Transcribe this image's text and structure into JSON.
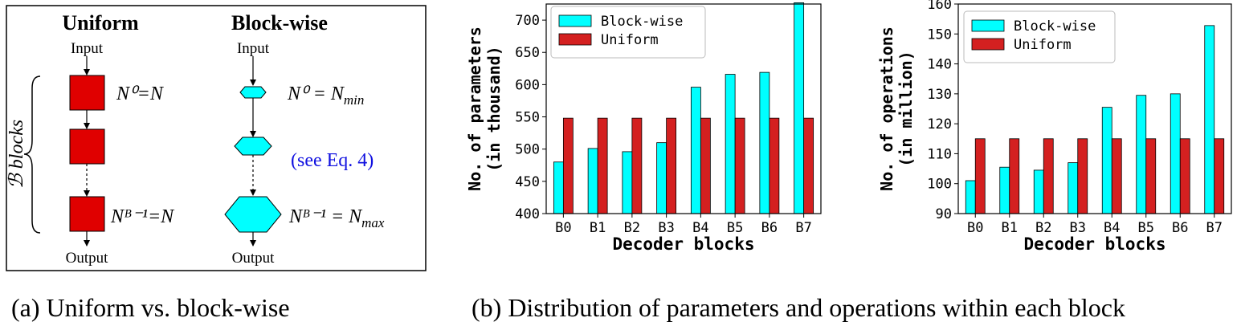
{
  "colors": {
    "blockwise": "#00FFFF",
    "uniform": "#D42020",
    "diagram_red": "#E00000",
    "eq_ref": "#1010E0"
  },
  "diagram": {
    "uniform_title": "Uniform",
    "blockwise_title": "Block-wise",
    "input_label": "Input",
    "output_label": "Output",
    "blocks_label": "ℬ blocks",
    "uniform_first_eq": "N⁰=N",
    "uniform_last_eq": "Nᴮ⁻¹=N",
    "block_first_eq": "N⁰ = N",
    "block_first_sub": "min",
    "block_last_eq": "Nᴮ⁻¹ = N",
    "block_last_sub": "max",
    "eq_reference": "(see Eq. 4)"
  },
  "captions": {
    "a": "(a) Uniform vs. block-wise",
    "b": "(b) Distribution of parameters and operations within each block"
  },
  "chart_data": [
    {
      "type": "bar",
      "xlabel": "Decoder blocks",
      "ylabel_line1": "No. of parameters",
      "ylabel_line2": "(in thousand)",
      "ylim": [
        400,
        725
      ],
      "yticks": [
        400,
        450,
        500,
        550,
        600,
        650,
        700
      ],
      "categories": [
        "B0",
        "B1",
        "B2",
        "B3",
        "B4",
        "B5",
        "B6",
        "B7"
      ],
      "legend_position": "top-left",
      "series": [
        {
          "name": "Block-wise",
          "values": [
            480,
            501,
            496,
            510,
            596,
            616,
            619,
            727
          ]
        },
        {
          "name": "Uniform",
          "values": [
            548,
            548,
            548,
            548,
            548,
            548,
            548,
            548
          ]
        }
      ]
    },
    {
      "type": "bar",
      "xlabel": "Decoder blocks",
      "ylabel_line1": "No. of operations",
      "ylabel_line2": "(in million)",
      "ylim": [
        90,
        160
      ],
      "yticks": [
        90,
        100,
        110,
        120,
        130,
        140,
        150,
        160
      ],
      "categories": [
        "B0",
        "B1",
        "B2",
        "B3",
        "B4",
        "B5",
        "B6",
        "B7"
      ],
      "legend_position": "top-left",
      "series": [
        {
          "name": "Block-wise",
          "values": [
            101,
            105.5,
            104.5,
            107,
            125.5,
            129.5,
            130,
            152.8
          ]
        },
        {
          "name": "Uniform",
          "values": [
            115,
            115,
            115,
            115,
            115,
            115,
            115,
            115
          ]
        }
      ]
    }
  ]
}
